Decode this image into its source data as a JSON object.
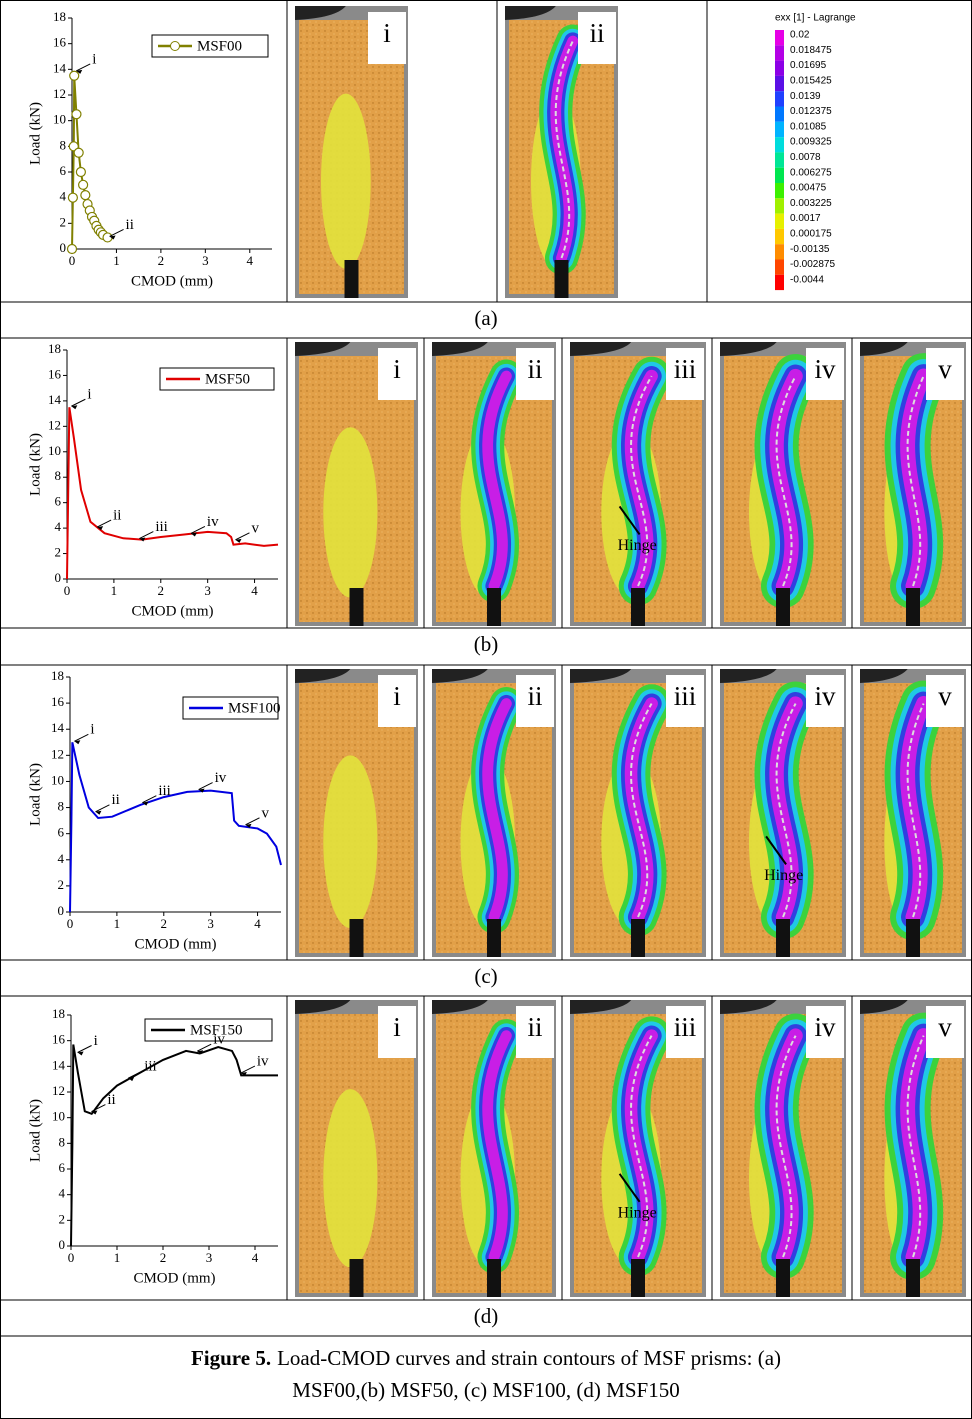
{
  "chart_data": [
    {
      "type": "line",
      "xlabel": "CMOD (mm)",
      "ylabel": "Load (kN)",
      "xlim": [
        0,
        4.5
      ],
      "ylim": [
        0,
        18
      ],
      "xticks": [
        0,
        1,
        2,
        3,
        4
      ],
      "yticks": [
        0,
        2,
        4,
        6,
        8,
        10,
        12,
        14,
        16,
        18
      ],
      "x": [
        0,
        0.02,
        0.04,
        0.05,
        0.1,
        0.15,
        0.2,
        0.25,
        0.3,
        0.35,
        0.4,
        0.45,
        0.5,
        0.55,
        0.6,
        0.65,
        0.7,
        0.8
      ],
      "series": [
        {
          "name": "MSF00",
          "color": "#808000",
          "marker": "circle",
          "values": [
            0,
            4,
            8,
            13.5,
            10.5,
            7.5,
            6,
            5,
            4.2,
            3.5,
            3,
            2.5,
            2.2,
            1.8,
            1.5,
            1.3,
            1.1,
            0.9
          ]
        }
      ],
      "annotations": [
        {
          "text": "i",
          "x": 0.05,
          "y": 13.8
        },
        {
          "text": "ii",
          "x": 0.8,
          "y": 0.9
        }
      ]
    },
    {
      "type": "line",
      "xlabel": "CMOD (mm)",
      "ylabel": "Load (kN)",
      "xlim": [
        0,
        4.5
      ],
      "ylim": [
        0,
        18
      ],
      "xticks": [
        0,
        1,
        2,
        3,
        4
      ],
      "yticks": [
        0,
        2,
        4,
        6,
        8,
        10,
        12,
        14,
        16,
        18
      ],
      "x": [
        0,
        0.03,
        0.05,
        0.15,
        0.3,
        0.5,
        0.8,
        1.2,
        1.6,
        2,
        2.5,
        3,
        3.4,
        3.5,
        3.55,
        3.8,
        4.2,
        4.5
      ],
      "series": [
        {
          "name": "MSF50",
          "color": "#e00000",
          "values": [
            0,
            8,
            13.5,
            11,
            7,
            4.5,
            3.6,
            3.2,
            3.1,
            3.3,
            3.5,
            3.7,
            3.6,
            3.3,
            2.7,
            2.8,
            2.6,
            2.7
          ]
        }
      ],
      "annotations": [
        {
          "text": "i",
          "x": 0.05,
          "y": 13.5
        },
        {
          "text": "ii",
          "x": 0.6,
          "y": 4
        },
        {
          "text": "iii",
          "x": 1.5,
          "y": 3.1
        },
        {
          "text": "iv",
          "x": 2.6,
          "y": 3.5
        },
        {
          "text": "v",
          "x": 3.55,
          "y": 3
        }
      ]
    },
    {
      "type": "line",
      "xlabel": "CMOD (mm)",
      "ylabel": "Load (kN)",
      "xlim": [
        0,
        4.5
      ],
      "ylim": [
        0,
        18
      ],
      "xticks": [
        0,
        1,
        2,
        3,
        4
      ],
      "yticks": [
        0,
        2,
        4,
        6,
        8,
        10,
        12,
        14,
        16,
        18
      ],
      "x": [
        0,
        0.03,
        0.05,
        0.2,
        0.4,
        0.6,
        0.9,
        1.5,
        2,
        2.5,
        3,
        3.45,
        3.5,
        3.6,
        4,
        4.2,
        4.4,
        4.5
      ],
      "series": [
        {
          "name": "MSF100",
          "color": "#0000e0",
          "values": [
            0,
            7,
            13,
            10.5,
            8,
            7.2,
            7.3,
            8.2,
            8.8,
            9.2,
            9.3,
            9.1,
            7,
            6.6,
            6.4,
            6,
            5,
            3.6
          ]
        }
      ],
      "annotations": [
        {
          "text": "i",
          "x": 0.05,
          "y": 13
        },
        {
          "text": "ii",
          "x": 0.5,
          "y": 7.6
        },
        {
          "text": "iii",
          "x": 1.5,
          "y": 8.3
        },
        {
          "text": "iv",
          "x": 2.7,
          "y": 9.3
        },
        {
          "text": "v",
          "x": 3.7,
          "y": 6.6
        }
      ]
    },
    {
      "type": "line",
      "xlabel": "CMOD (mm)",
      "ylabel": "Load (kN)",
      "xlim": [
        0,
        4.5
      ],
      "ylim": [
        0,
        18
      ],
      "xticks": [
        0,
        1,
        2,
        3,
        4
      ],
      "yticks": [
        0,
        2,
        4,
        6,
        8,
        10,
        12,
        14,
        16,
        18
      ],
      "x": [
        0,
        0.03,
        0.05,
        0.15,
        0.3,
        0.45,
        0.7,
        1,
        1.5,
        2,
        2.5,
        2.8,
        3.2,
        3.5,
        3.6,
        3.7,
        4.5
      ],
      "series": [
        {
          "name": "MSF150",
          "color": "#000000",
          "values": [
            0,
            8,
            15.7,
            13.5,
            10.5,
            10.3,
            11.5,
            12.5,
            13.5,
            14.5,
            15.2,
            15,
            15.5,
            15.2,
            14.5,
            13.3,
            13.3
          ]
        }
      ],
      "annotations": [
        {
          "text": "i",
          "x": 0.1,
          "y": 15
        },
        {
          "text": "ii",
          "x": 0.4,
          "y": 10.4
        },
        {
          "text": "iii",
          "x": 1.2,
          "y": 13
        },
        {
          "text": "iv",
          "x": 2.7,
          "y": 15.1
        },
        {
          "text": "iv",
          "x": 3.65,
          "y": 13.4
        }
      ]
    }
  ],
  "figure": {
    "panels": [
      {
        "label": "(a)",
        "images": [
          {
            "label": "i"
          },
          {
            "label": "ii"
          }
        ]
      },
      {
        "label": "(b)",
        "images": [
          {
            "label": "i"
          },
          {
            "label": "ii"
          },
          {
            "label": "iii",
            "note": "Hinge"
          },
          {
            "label": "iv"
          },
          {
            "label": "v"
          }
        ]
      },
      {
        "label": "(c)",
        "images": [
          {
            "label": "i"
          },
          {
            "label": "ii"
          },
          {
            "label": "iii"
          },
          {
            "label": "iv",
            "note": "Hinge"
          },
          {
            "label": "v"
          }
        ]
      },
      {
        "label": "(d)",
        "images": [
          {
            "label": "i"
          },
          {
            "label": "ii"
          },
          {
            "label": "iii",
            "note": "Hinge"
          },
          {
            "label": "iv"
          },
          {
            "label": "v"
          }
        ]
      }
    ],
    "colorbar": {
      "title": "exx [1] - Lagrange",
      "ticks": [
        0.02,
        0.018475,
        0.01695,
        0.015425,
        0.0139,
        0.012375,
        0.01085,
        0.009325,
        0.0078,
        0.006275,
        0.00475,
        0.003225,
        0.0017,
        0.000175,
        -0.00135,
        -0.002875,
        -0.0044
      ],
      "colors": [
        "#e600e6",
        "#b400e6",
        "#8c00e6",
        "#5a10e6",
        "#2040ff",
        "#0078ff",
        "#00b4ff",
        "#00dcdc",
        "#00e696",
        "#00e650",
        "#3cf000",
        "#a0f000",
        "#e6f000",
        "#ffc800",
        "#ff8c00",
        "#ff4600",
        "#ff0000"
      ]
    },
    "caption": {
      "label": "Figure 5.",
      "lines": [
        "Load-CMOD curves and strain contours of MSF prisms: (a)",
        "MSF00,(b) MSF50, (c) MSF100, (d) MSF150"
      ]
    }
  }
}
